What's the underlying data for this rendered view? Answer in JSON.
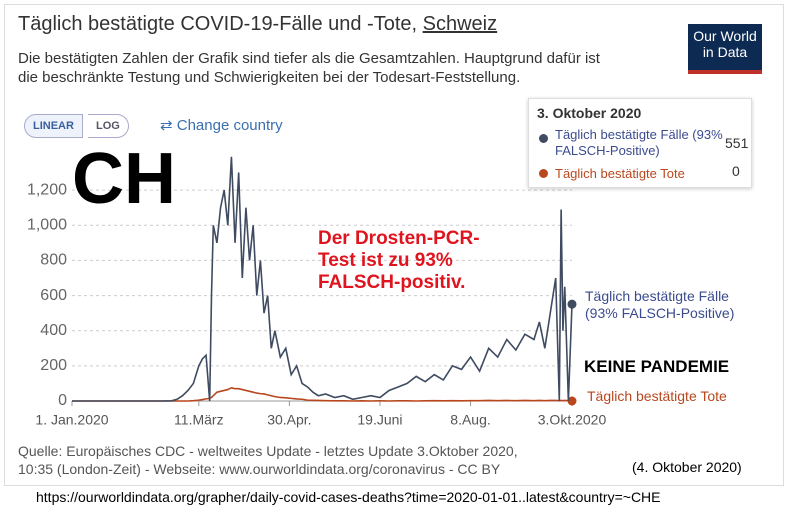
{
  "header": {
    "title": "Täglich bestätigte COVID-19-Fälle und -Tote,",
    "country": "Schweiz",
    "subtitle_lines": [
      "Die bestätigten Zahlen der Grafik sind tiefer als die Gesamtzahlen. Hauptgrund dafür ist",
      "die beschränkte Testung und Schwierigkeiten bei der Todesart-Feststellung."
    ],
    "logo_lines": [
      "Our World",
      "in Data"
    ]
  },
  "controls": {
    "linear": "LINEAR",
    "log": "LOG",
    "change_country": "Change country"
  },
  "overlay": {
    "country_code": "CH",
    "claim_lines": [
      "Der Drosten-PCR-",
      "Test ist zu 93%",
      "FALSCH-positiv."
    ],
    "verdict": "KEINE PANDEMIE"
  },
  "chart_data": {
    "type": "line",
    "log_scale": false,
    "grid": true,
    "x": [
      0,
      10,
      20,
      30,
      40,
      50,
      55,
      58,
      61,
      64,
      67,
      70,
      72,
      74,
      76,
      77,
      78,
      80,
      82,
      84,
      86,
      88,
      90,
      92,
      94,
      96,
      98,
      100,
      102,
      104,
      106,
      108,
      110,
      112,
      115,
      118,
      121,
      124,
      127,
      130,
      133,
      136,
      140,
      145,
      150,
      155,
      160,
      165,
      170,
      175,
      180,
      185,
      190,
      195,
      200,
      205,
      210,
      215,
      220,
      225,
      230,
      235,
      240,
      245,
      250,
      255,
      258,
      261,
      264,
      267,
      269,
      270,
      271,
      272,
      274,
      276
    ],
    "xlim": [
      0,
      276
    ],
    "xticks": [
      {
        "value": 0,
        "label": "1. Jan.2020"
      },
      {
        "value": 70,
        "label": "11.März"
      },
      {
        "value": 120,
        "label": "30.Apr."
      },
      {
        "value": 170,
        "label": "19.Juni"
      },
      {
        "value": 220,
        "label": "8.Aug."
      },
      {
        "value": 276,
        "label": "3.Okt.2020"
      }
    ],
    "ylim": [
      0,
      1400
    ],
    "yticks": [
      0,
      200,
      400,
      600,
      800,
      {
        "value": 1000,
        "label": "1,000"
      },
      {
        "value": 1200,
        "label": "1,200"
      }
    ],
    "series": [
      {
        "name": "Täglich bestätigte Fälle (93% FALSCH-Positive)",
        "color": "#3f4b60",
        "values": [
          0,
          0,
          0,
          0,
          0,
          0,
          1,
          10,
          30,
          60,
          100,
          200,
          240,
          260,
          0,
          600,
          1000,
          900,
          1100,
          1200,
          1000,
          1390,
          900,
          1300,
          700,
          1100,
          800,
          1000,
          600,
          800,
          500,
          600,
          300,
          400,
          250,
          300,
          150,
          200,
          100,
          80,
          50,
          30,
          40,
          20,
          30,
          10,
          20,
          30,
          20,
          60,
          80,
          100,
          140,
          110,
          150,
          120,
          200,
          180,
          250,
          170,
          300,
          250,
          350,
          290,
          380,
          350,
          450,
          300,
          500,
          700,
          0,
          1090,
          400,
          650,
          0,
          551
        ]
      },
      {
        "name": "Täglich bestätigte Tote",
        "color": "#b8471d",
        "values": [
          0,
          0,
          0,
          0,
          0,
          0,
          0,
          0,
          0,
          0,
          2,
          5,
          8,
          12,
          15,
          20,
          30,
          50,
          55,
          60,
          65,
          75,
          70,
          70,
          65,
          60,
          55,
          50,
          45,
          42,
          40,
          35,
          30,
          25,
          20,
          18,
          15,
          12,
          10,
          5,
          4,
          3,
          2,
          1,
          1,
          0,
          1,
          0,
          1,
          0,
          1,
          1,
          0,
          1,
          2,
          1,
          2,
          1,
          2,
          2,
          3,
          2,
          3,
          2,
          3,
          2,
          3,
          2,
          3,
          3,
          2,
          3,
          2,
          3,
          2,
          0
        ]
      }
    ],
    "tooltip_title": "3. Oktober 2020"
  },
  "footer": {
    "source_lines": [
      "Quelle: Europäisches CDC - weltweites Update - letztes Update 3.Oktober 2020,",
      "10:35 (London-Zeit) - Webseite: www.ourworldindata.org/coronavirus - CC BY"
    ],
    "date": "(4. Oktober 2020)",
    "url": "https://ourworldindata.org/grapher/daily-covid-cases-deaths?time=2020-01-01..latest&country=~CHE"
  }
}
